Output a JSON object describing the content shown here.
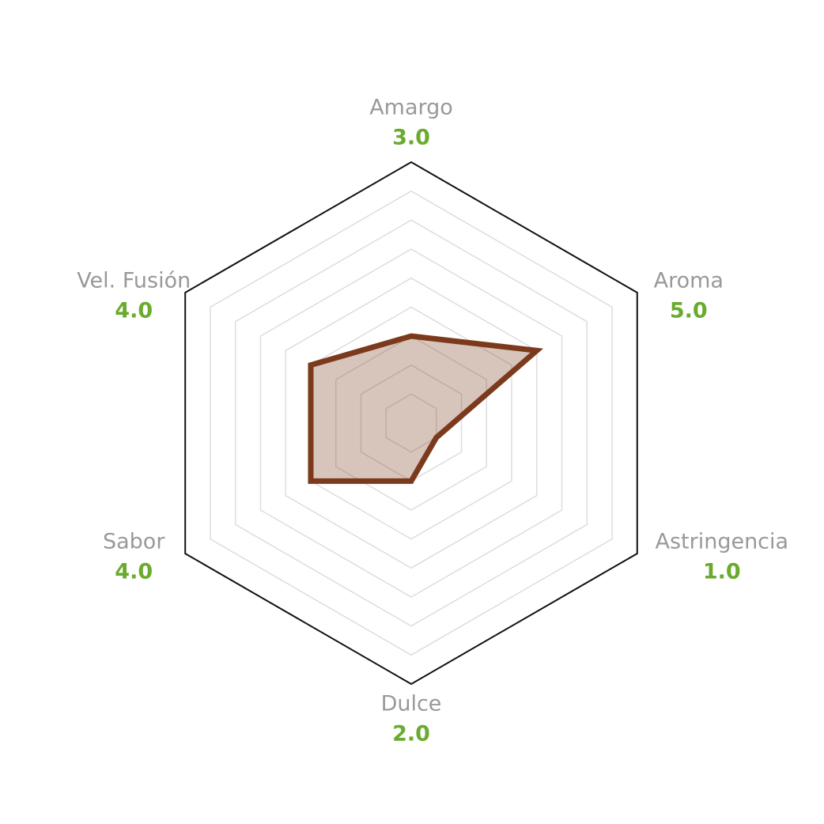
{
  "chart_data": {
    "type": "radar",
    "categories": [
      "Amargo",
      "Aroma",
      "Astringencia",
      "Dulce",
      "Sabor",
      "Vel. Fusión"
    ],
    "values": [
      3,
      5,
      1,
      2,
      4,
      4
    ],
    "value_labels": [
      "3.0",
      "5.0",
      "1.0",
      "2.0",
      "4.0",
      "4.0"
    ],
    "color": "#7b3a1c",
    "ylim": [
      0,
      9
    ],
    "yticks": [
      1,
      2,
      3,
      4,
      5,
      6,
      7,
      8,
      9
    ],
    "grid": true
  }
}
